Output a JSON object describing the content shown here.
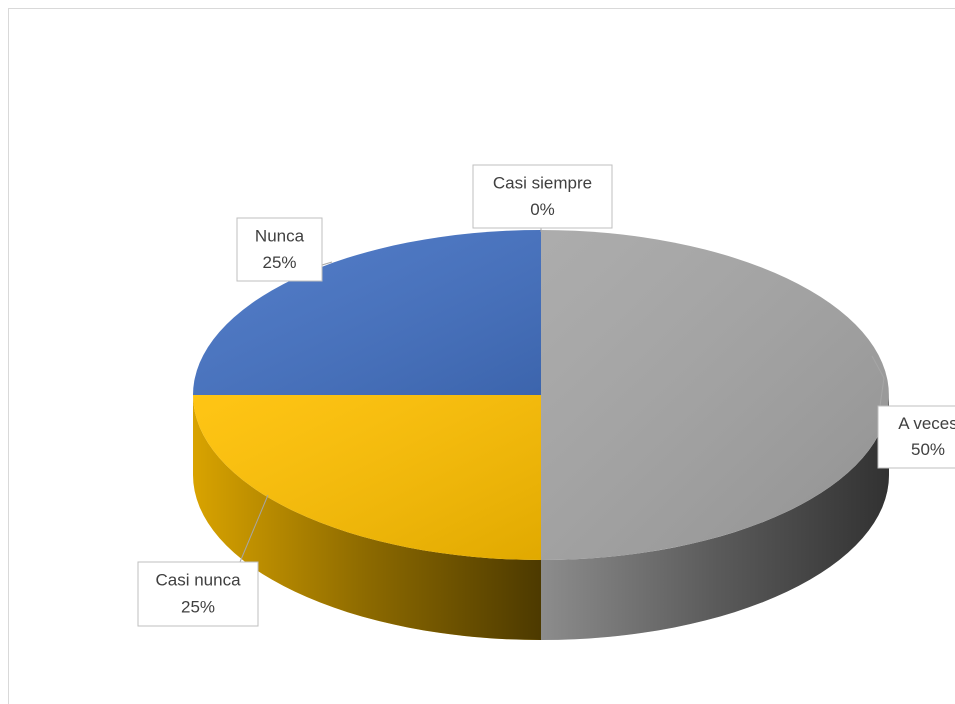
{
  "chart_data": {
    "type": "pie3d",
    "categories": [
      "A veces",
      "Casi nunca",
      "Nunca",
      "Casi siempre"
    ],
    "values": [
      50,
      25,
      25,
      0
    ],
    "value_labels": [
      "50%",
      "25%",
      "25%",
      "0%"
    ],
    "colors": [
      "#a5a5a5",
      "#ffc000",
      "#4472c4",
      "#ed7d31"
    ]
  }
}
